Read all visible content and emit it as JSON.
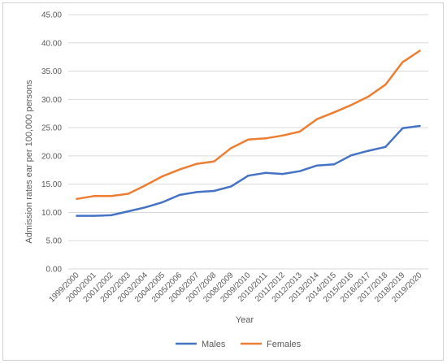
{
  "chart_data": {
    "type": "line",
    "title": "",
    "xlabel": "Year",
    "ylabel": "Admission rates ear per 100,000 persons",
    "ylim": [
      0,
      45
    ],
    "yticks": [
      "0.00",
      "5.00",
      "10.00",
      "15.00",
      "20.00",
      "25.00",
      "30.00",
      "35.00",
      "40.00",
      "45.00"
    ],
    "grid": true,
    "legend": "bottom",
    "categories": [
      "1999/2000",
      "2000/2001",
      "2001/2002",
      "2002/2003",
      "2003/2004",
      "2004/2005",
      "2005/2006",
      "2006/2007",
      "2007/2008",
      "2008/2009",
      "2009/2010",
      "2010/2011",
      "2011/2012",
      "2012/2013",
      "2013/2014",
      "2014/2015",
      "2015/2016",
      "2016/2017",
      "2017/2018",
      "2018/2019",
      "2019/2020"
    ],
    "series": [
      {
        "name": "Males",
        "color": "#4472c4",
        "values": [
          9.4,
          9.4,
          9.5,
          10.2,
          10.9,
          11.8,
          13.1,
          13.6,
          13.8,
          14.6,
          16.5,
          17.0,
          16.8,
          17.3,
          18.3,
          18.5,
          20.1,
          20.9,
          21.6,
          24.9,
          25.3
        ]
      },
      {
        "name": "Females",
        "color": "#ed7d31",
        "values": [
          12.4,
          12.9,
          12.9,
          13.3,
          14.8,
          16.4,
          17.6,
          18.6,
          19.0,
          21.4,
          22.9,
          23.1,
          23.6,
          24.3,
          26.5,
          27.7,
          29.0,
          30.5,
          32.6,
          36.6,
          38.6
        ]
      }
    ]
  }
}
